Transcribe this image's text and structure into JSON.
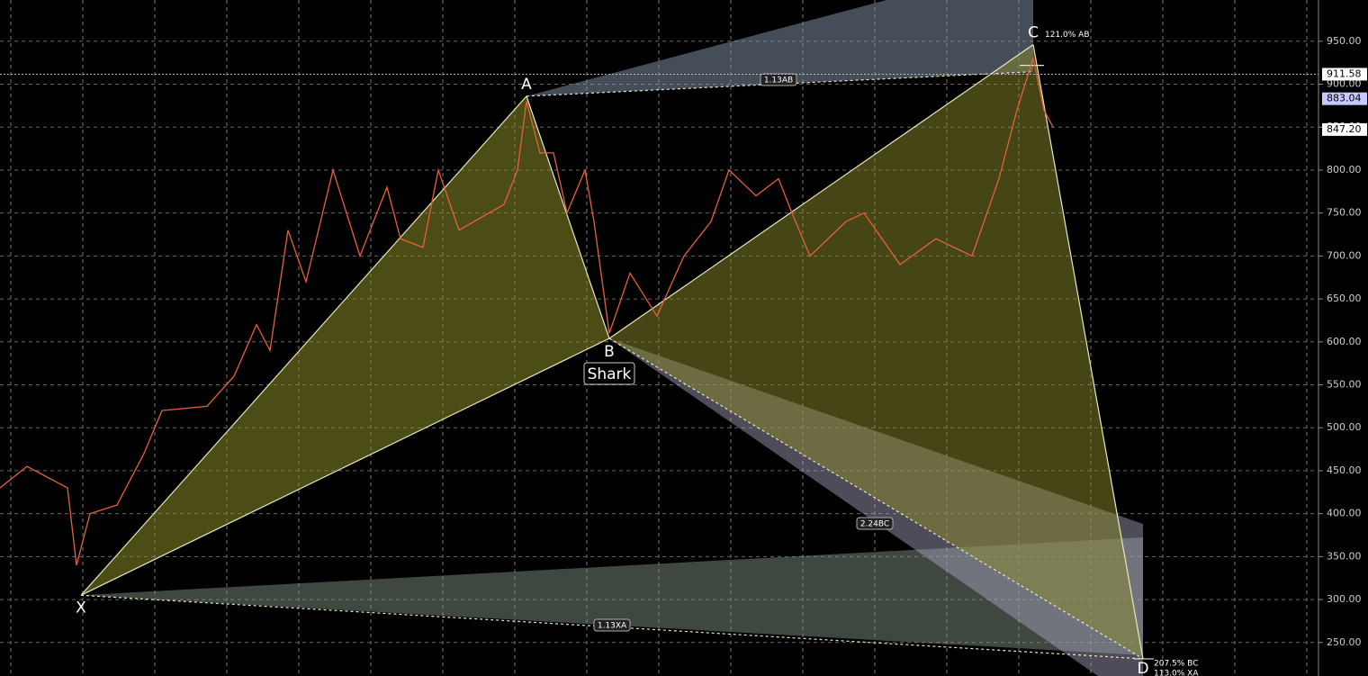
{
  "chart_data": {
    "type": "line",
    "color": "#e8603a",
    "x": [
      0,
      30,
      75,
      85,
      100,
      130,
      160,
      180,
      230,
      260,
      285,
      300,
      320,
      340,
      370,
      400,
      430,
      445,
      470,
      487,
      510,
      560,
      575,
      585,
      600,
      615,
      630,
      650,
      660,
      677,
      700,
      730,
      760,
      790,
      810,
      840,
      865,
      880,
      900,
      940,
      960,
      1000,
      1040,
      1080,
      1110,
      1130,
      1148,
      1160,
      1170
    ],
    "values": [
      430,
      455,
      430,
      340,
      400,
      410,
      470,
      520,
      525,
      560,
      620,
      590,
      730,
      670,
      800,
      700,
      780,
      720,
      710,
      800,
      730,
      760,
      800,
      880,
      820,
      820,
      750,
      800,
      740,
      610,
      680,
      630,
      700,
      740,
      800,
      770,
      790,
      750,
      700,
      740,
      750,
      690,
      720,
      700,
      790,
      870,
      930,
      870,
      850
    ],
    "xlim": [
      0,
      1465
    ],
    "ylim": [
      211,
      998
    ],
    "yticks": [
      {
        "value": 250,
        "label": "250.00"
      },
      {
        "value": 300,
        "label": "300.00"
      },
      {
        "value": 350,
        "label": "350.00"
      },
      {
        "value": 400,
        "label": "400.00"
      },
      {
        "value": 450,
        "label": "450.00"
      },
      {
        "value": 500,
        "label": "500.00"
      },
      {
        "value": 550,
        "label": "550.00"
      },
      {
        "value": 600,
        "label": "600.00"
      },
      {
        "value": 650,
        "label": "650.00"
      },
      {
        "value": 700,
        "label": "700.00"
      },
      {
        "value": 750,
        "label": "750.00"
      },
      {
        "value": 800,
        "label": "800.00"
      },
      {
        "value": 850,
        "label": "850.00"
      },
      {
        "value": 900,
        "label": "900.00"
      },
      {
        "value": 950,
        "label": "950.00"
      }
    ],
    "grid": true,
    "price_tags": [
      {
        "value": 911.58,
        "label": "911.58"
      },
      {
        "value": 883.04,
        "label": "883.04"
      },
      {
        "value": 847.2,
        "label": "847.20"
      }
    ],
    "pattern": {
      "name": "Shark",
      "points": [
        {
          "label": "X",
          "x": 90,
          "y": 305
        },
        {
          "label": "A",
          "x": 585,
          "y": 886
        },
        {
          "label": "B",
          "x": 677,
          "y": 604
        },
        {
          "label": "C",
          "x": 1148,
          "y": 946
        },
        {
          "label": "D",
          "x": 1270,
          "y": 231
        }
      ],
      "ratios": {
        "c": "121.0% AB",
        "ab": "1.13AB",
        "bc": "2.24BC",
        "xa": "1.13XA",
        "d_bc": "207.5% BC",
        "d_xa": "113.0% XA"
      }
    }
  }
}
